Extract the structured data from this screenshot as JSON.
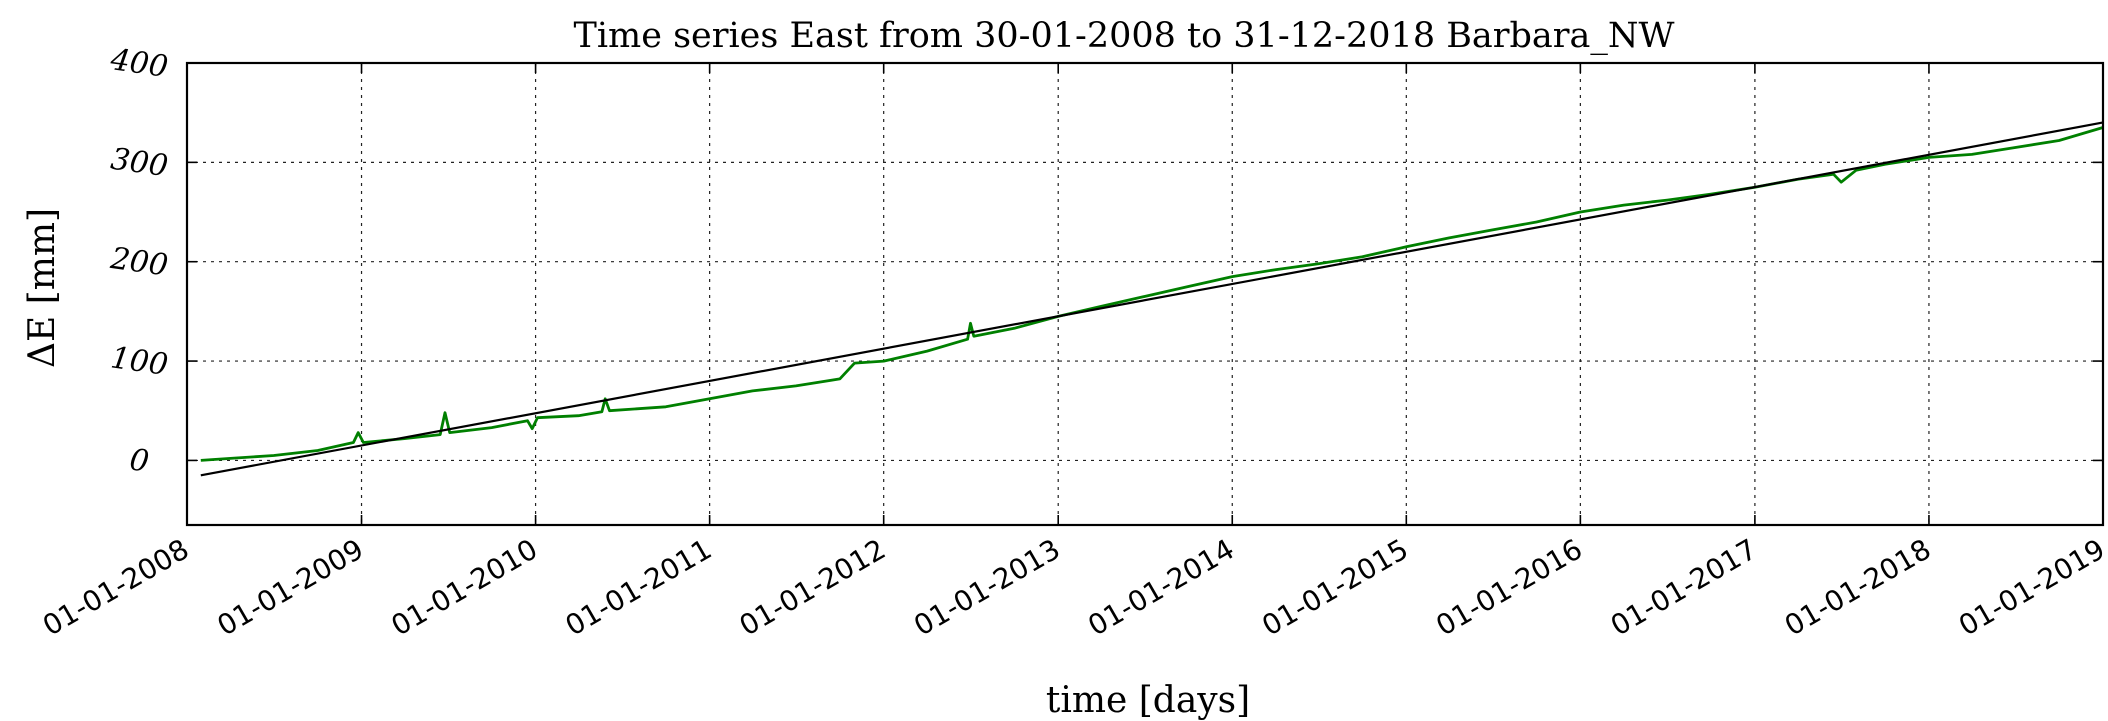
{
  "chart_data": {
    "type": "line",
    "title": "Time series East from 30-01-2008 to 31-12-2018 Barbara_NW",
    "xlabel": "time [days]",
    "ylabel": "ΔE  [mm]",
    "xlim": [
      "2008-01-01",
      "2019-01-01"
    ],
    "ylim": [
      -65,
      400
    ],
    "x_ticks": [
      "2008-01-01",
      "2009-01-01",
      "2010-01-01",
      "2011-01-01",
      "2012-01-01",
      "2013-01-01",
      "2014-01-01",
      "2015-01-01",
      "2016-01-01",
      "2017-01-01",
      "2018-01-01",
      "2019-01-01"
    ],
    "x_tick_labels": [
      "01-01-2008",
      "01-01-2009",
      "01-01-2010",
      "01-01-2011",
      "01-01-2012",
      "01-01-2013",
      "01-01-2014",
      "01-01-2015",
      "01-01-2016",
      "01-01-2017",
      "01-01-2018",
      "01-01-2019"
    ],
    "y_ticks": [
      0,
      100,
      200,
      300,
      400
    ],
    "y_tick_labels": [
      "0",
      "100",
      "200",
      "300",
      "400"
    ],
    "grid": true,
    "series": [
      {
        "color": "#008000",
        "x": [
          "2008-01-30",
          "2008-04-01",
          "2008-07-01",
          "2008-10-01",
          "2008-12-15",
          "2008-12-25",
          "2009-01-05",
          "2009-04-01",
          "2009-06-15",
          "2009-06-25",
          "2009-07-05",
          "2009-10-01",
          "2009-12-15",
          "2009-12-25",
          "2010-01-05",
          "2010-04-01",
          "2010-05-20",
          "2010-05-27",
          "2010-06-05",
          "2010-10-01",
          "2011-01-01",
          "2011-04-01",
          "2011-07-01",
          "2011-10-01",
          "2011-11-01",
          "2012-01-01",
          "2012-04-01",
          "2012-06-25",
          "2012-07-01",
          "2012-07-08",
          "2012-10-01",
          "2013-01-01",
          "2013-04-01",
          "2013-07-01",
          "2013-10-01",
          "2014-01-01",
          "2014-04-01",
          "2014-07-01",
          "2014-10-01",
          "2015-01-01",
          "2015-04-01",
          "2015-07-01",
          "2015-10-01",
          "2016-01-01",
          "2016-04-01",
          "2016-07-01",
          "2016-10-01",
          "2017-01-01",
          "2017-04-01",
          "2017-06-15",
          "2017-07-01",
          "2017-08-01",
          "2017-10-01",
          "2018-01-01",
          "2018-04-01",
          "2018-07-01",
          "2018-10-01",
          "2018-12-31"
        ],
        "y": [
          0,
          2,
          5,
          10,
          18,
          28,
          18,
          22,
          26,
          48,
          28,
          33,
          40,
          32,
          43,
          45,
          49,
          62,
          50,
          54,
          62,
          70,
          75,
          82,
          98,
          100,
          110,
          122,
          138,
          125,
          133,
          145,
          155,
          165,
          175,
          185,
          192,
          198,
          205,
          215,
          224,
          232,
          240,
          250,
          257,
          262,
          268,
          275,
          283,
          288,
          280,
          292,
          298,
          305,
          308,
          315,
          322,
          335
        ]
      },
      {
        "color": "#000000",
        "x": [
          "2008-01-30",
          "2018-12-31"
        ],
        "y": [
          -15,
          340
        ]
      }
    ]
  }
}
